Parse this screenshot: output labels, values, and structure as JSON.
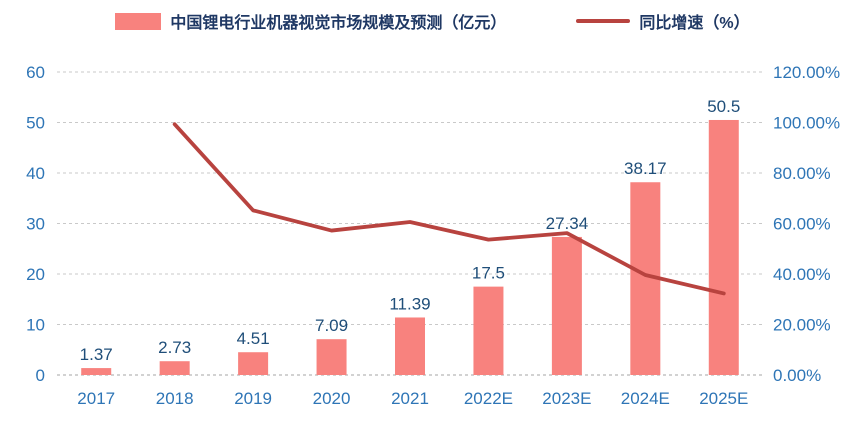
{
  "legend": {
    "bar_label": "中国锂电行业机器视觉市场规模及预测（亿元）",
    "line_label": "同比增速（%）"
  },
  "colors": {
    "bar": "#f8827e",
    "line": "#b8433f",
    "tick_text": "#2e75b6",
    "value_text": "#1f4e79",
    "grid": "#c9c9c9",
    "baseline": "#a6a6a6"
  },
  "chart_data": {
    "type": "bar",
    "title": "",
    "categories": [
      "2017",
      "2018",
      "2019",
      "2020",
      "2021",
      "2022E",
      "2023E",
      "2024E",
      "2025E"
    ],
    "series": [
      {
        "name": "中国锂电行业机器视觉市场规模及预测（亿元）",
        "render": "bar",
        "axis": "left",
        "values": [
          1.37,
          2.73,
          4.51,
          7.09,
          11.39,
          17.5,
          27.34,
          38.17,
          50.5
        ],
        "labels": [
          "1.37",
          "2.73",
          "4.51",
          "7.09",
          "11.39",
          "17.5",
          "27.34",
          "38.17",
          "50.5"
        ]
      },
      {
        "name": "同比增速（%）",
        "render": "line",
        "axis": "right",
        "values": [
          null,
          99.3,
          65.2,
          57.2,
          60.6,
          53.6,
          56.2,
          39.6,
          32.3
        ]
      }
    ],
    "left_axis": {
      "min": 0,
      "max": 60,
      "step": 10,
      "ticks": [
        "0",
        "10",
        "20",
        "30",
        "40",
        "50",
        "60"
      ]
    },
    "right_axis": {
      "min": 0,
      "max": 120,
      "step": 20,
      "ticks": [
        "0.00%",
        "20.00%",
        "40.00%",
        "60.00%",
        "80.00%",
        "100.00%",
        "120.00%"
      ]
    },
    "grid": true,
    "grid_style": "dashed",
    "legend_position": "top"
  }
}
